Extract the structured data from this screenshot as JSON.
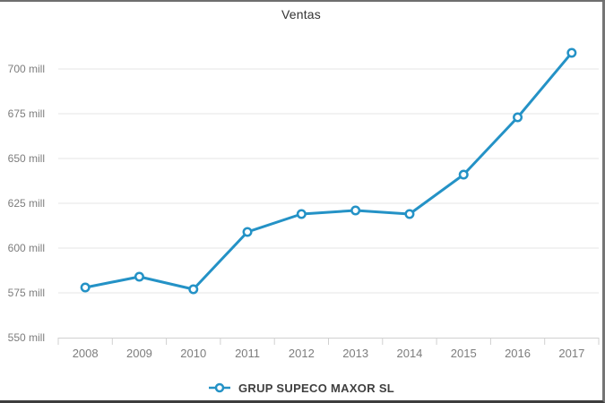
{
  "title": "Ventas",
  "colors": {
    "line": "#2492c6",
    "marker_fill": "#ffffff",
    "grid": "#e6e6e6",
    "axis": "#d0d0d0",
    "tick_label": "#7d7d7d",
    "title_text": "#333333",
    "legend_text": "#3f3f3f"
  },
  "chart_data": {
    "type": "line",
    "title": "Ventas",
    "categories": [
      "2008",
      "2009",
      "2010",
      "2011",
      "2012",
      "2013",
      "2014",
      "2015",
      "2016",
      "2017"
    ],
    "series": [
      {
        "name": "GRUP SUPECO MAXOR SL",
        "color": "#2492c6",
        "values": [
          578,
          584,
          577,
          609,
          619,
          621,
          619,
          641,
          673,
          709
        ]
      }
    ],
    "xlabel": "",
    "ylabel": "",
    "ytick_suffix": " mill",
    "yticks": [
      550,
      575,
      600,
      625,
      650,
      675,
      700
    ],
    "ylim": [
      550,
      712.5
    ],
    "grid": true,
    "legend_position": "bottom",
    "marker": "circle-open"
  }
}
